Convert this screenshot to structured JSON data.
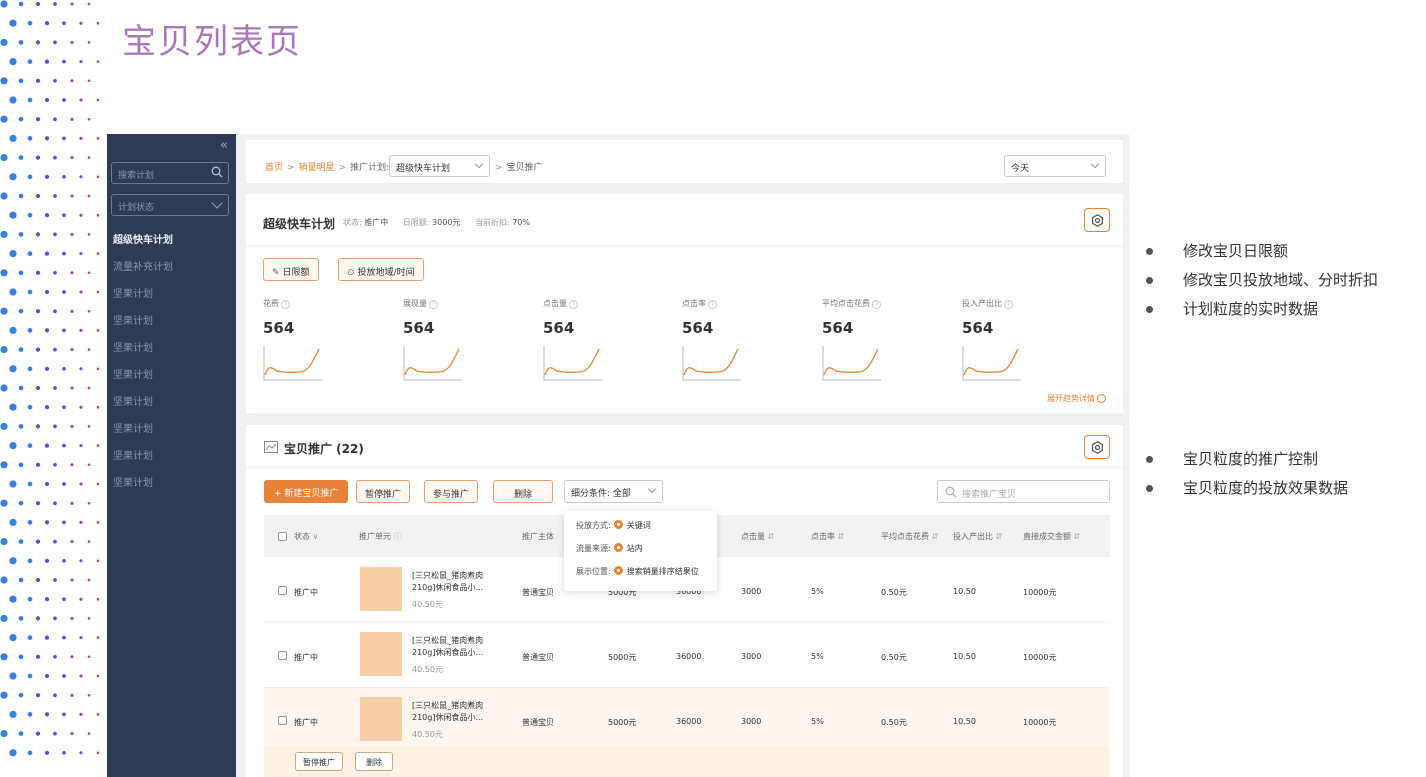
{
  "page_title": "宝贝列表页",
  "colors": {
    "accent": "#e8833a",
    "sidebar": "#2f3b54",
    "title": "#a779b8",
    "dot_palette": [
      "#3b7fdc",
      "#5b4ed8",
      "#8a4fb8",
      "#c04a6e"
    ]
  },
  "sidebar": {
    "search_placeholder": "搜索计划",
    "status_select": "计划状态",
    "items": [
      "超级快车计划",
      "流量补充计划",
      "坚果计划",
      "坚果计划",
      "坚果计划",
      "坚果计划",
      "坚果计划",
      "坚果计划",
      "坚果计划",
      "坚果计划"
    ]
  },
  "breadcrumb": {
    "home": "首页",
    "current": "销量明星",
    "plan_label": "推广计划:",
    "plan_value": "超级快车计划",
    "tail": "宝贝推广",
    "date": "今天"
  },
  "plan": {
    "title": "超级快车计划",
    "status_label": "状态:",
    "status": "推广中",
    "budget_label": "日限额:",
    "budget": "3000元",
    "discount_label": "当前折扣:",
    "discount": "70%",
    "btn_budget": "日限额",
    "btn_region": "投放地域/时间",
    "metrics": [
      {
        "label": "花费",
        "value": "564"
      },
      {
        "label": "展现量",
        "value": "564"
      },
      {
        "label": "点击量",
        "value": "564"
      },
      {
        "label": "点击率",
        "value": "564"
      },
      {
        "label": "平均点击花费",
        "value": "564"
      },
      {
        "label": "投入产出比",
        "value": "564"
      }
    ],
    "trend_link": "展开趋势详情"
  },
  "items": {
    "title": "宝贝推广 (22)",
    "btn_new": "+ 新建宝贝推广",
    "btn_pause": "暂停推广",
    "btn_join": "参与推广",
    "btn_delete": "删除",
    "filter": "细分条件: 全部",
    "search_placeholder": "搜索推广宝贝",
    "columns": [
      "状态",
      "推广单元",
      "推广主体",
      "点击量",
      "点击率",
      "平均点击花费",
      "投入产出比",
      "直接成交金额"
    ],
    "popup": {
      "rows": [
        {
          "label": "投放方式:",
          "value": "关键词"
        },
        {
          "label": "流量来源:",
          "value": "站内"
        },
        {
          "label": "展示位置:",
          "value": "搜索销量排序结果位"
        }
      ]
    },
    "rows": [
      {
        "status": "推广中",
        "name1": "[三只松鼠_猪肉煮肉",
        "name2": "210g]休闲食品小...",
        "price": "40.50元",
        "type": "普通宝贝",
        "c1": "5000元",
        "c2": "36000",
        "clicks": "3000",
        "ctr": "5%",
        "cpc": "0.50元",
        "roi": "10.50",
        "gmv": "10000元"
      },
      {
        "status": "推广中",
        "name1": "[三只松鼠_猪肉煮肉",
        "name2": "210g]休闲食品小...",
        "price": "40.50元",
        "type": "普通宝贝",
        "c1": "5000元",
        "c2": "36000",
        "clicks": "3000",
        "ctr": "5%",
        "cpc": "0.50元",
        "roi": "10.50",
        "gmv": "10000元"
      },
      {
        "status": "推广中",
        "name1": "[三只松鼠_猪肉煮肉",
        "name2": "210g]休闲食品小...",
        "price": "40.50元",
        "type": "普通宝贝",
        "c1": "5000元",
        "c2": "36000",
        "clicks": "3000",
        "ctr": "5%",
        "cpc": "0.50元",
        "roi": "10.50",
        "gmv": "10000元"
      }
    ],
    "row_btn_pause": "暂停推广",
    "row_btn_delete": "删除"
  },
  "notes_top": [
    "修改宝贝日限额",
    "修改宝贝投放地域、分时折扣",
    "计划粒度的实时数据"
  ],
  "notes_bottom": [
    "宝贝粒度的推广控制",
    "宝贝粒度的投放效果数据"
  ]
}
